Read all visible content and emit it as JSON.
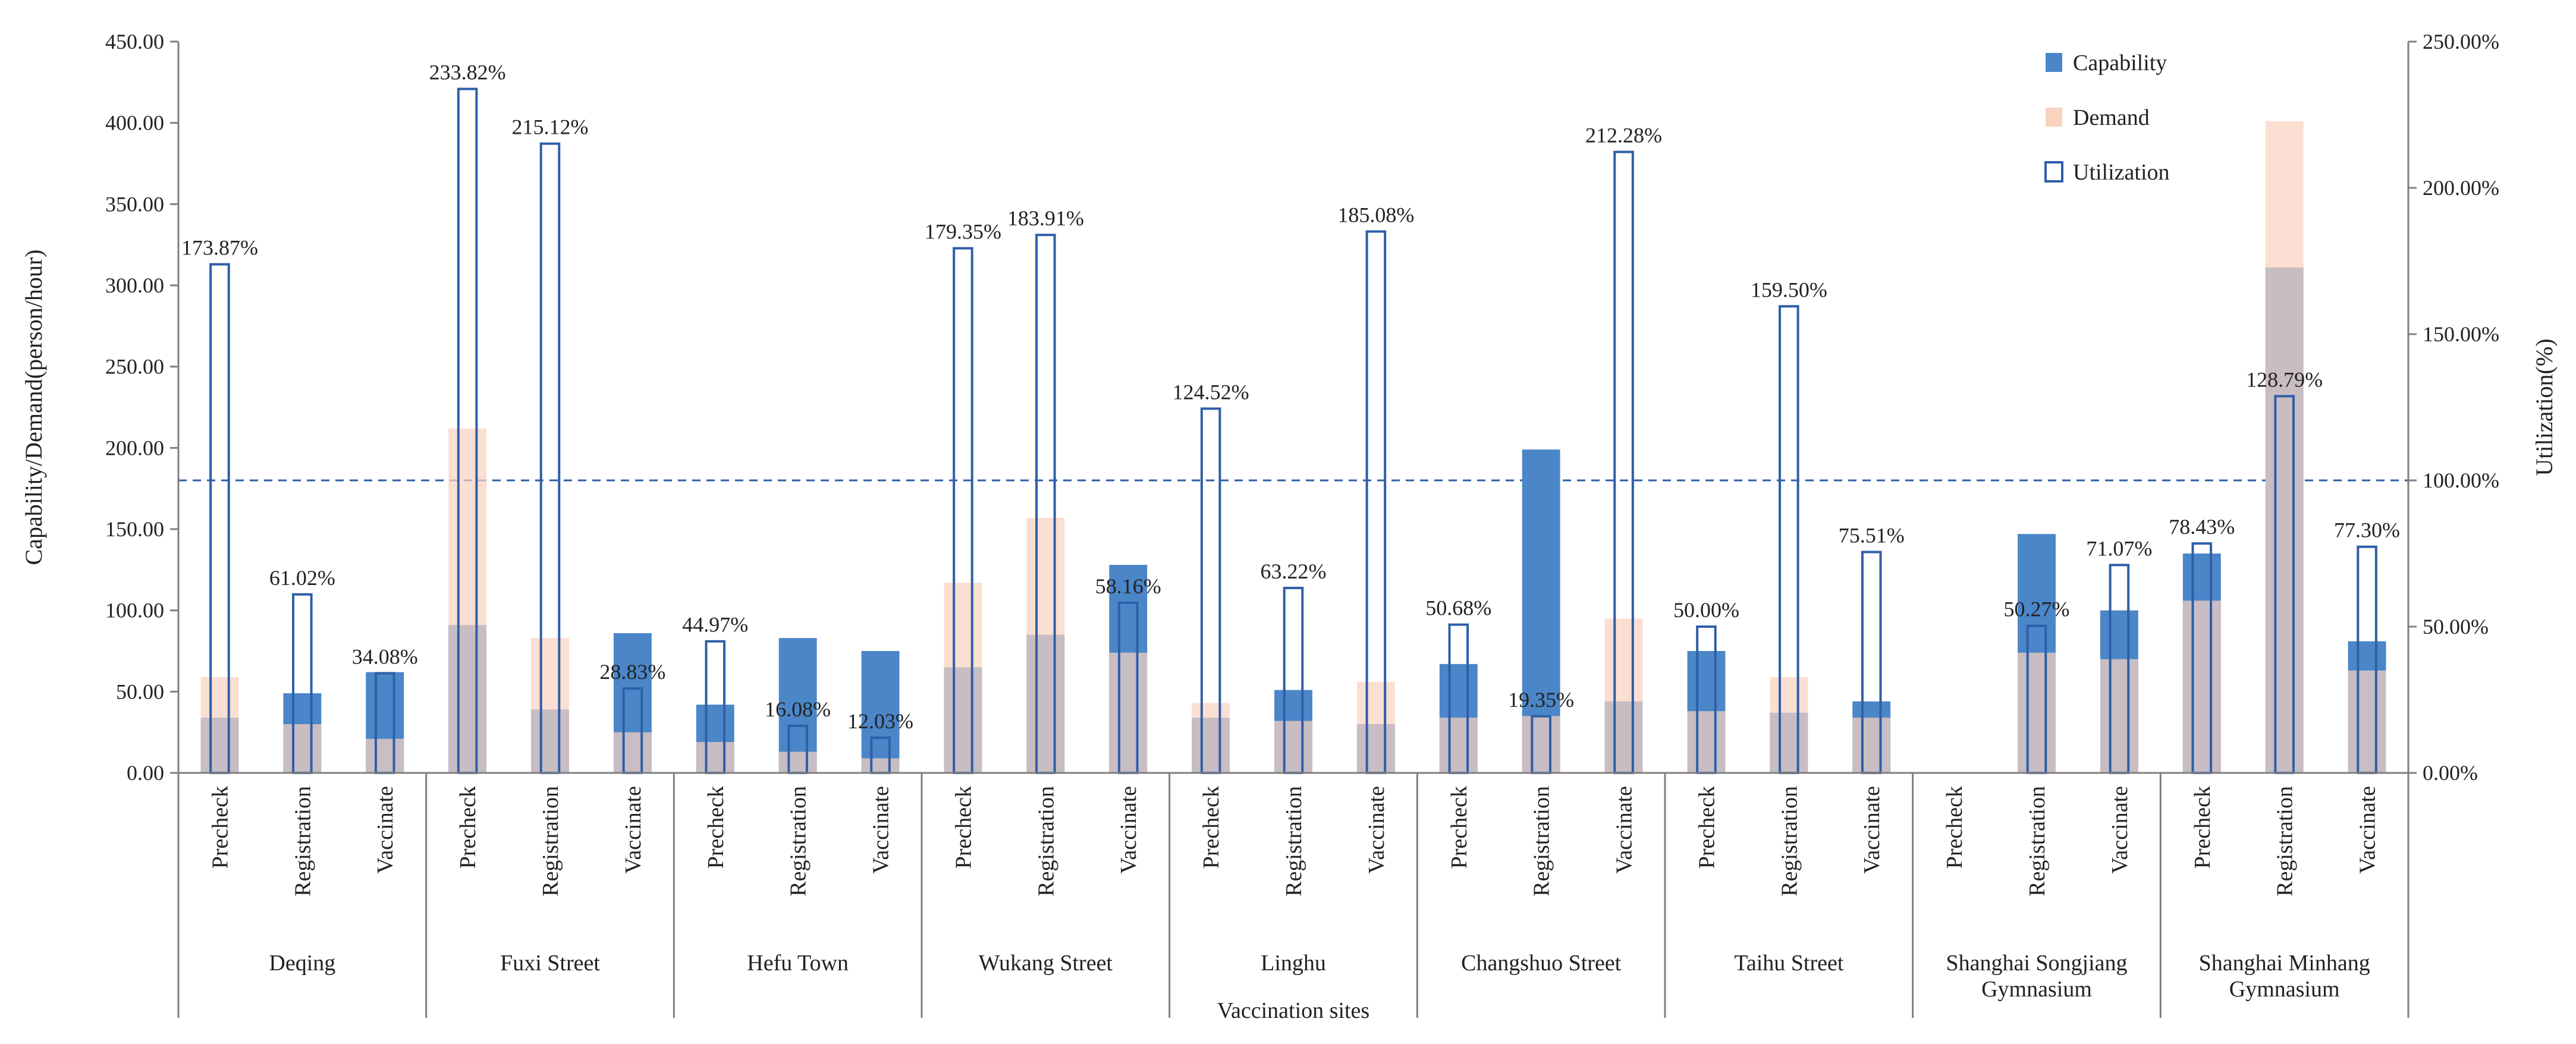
{
  "chart_data": {
    "type": "bar",
    "xlabel": "Vaccination sites",
    "ylabel": "Capability/Demand(person/hour)",
    "y2label": "Utilization(%)",
    "ylim": [
      0,
      450
    ],
    "y2lim": [
      0,
      250
    ],
    "yticks": [
      "0.00",
      "50.00",
      "100.00",
      "150.00",
      "200.00",
      "250.00",
      "300.00",
      "350.00",
      "400.00",
      "450.00"
    ],
    "y2ticks": [
      "0.00%",
      "50.00%",
      "100.00%",
      "150.00%",
      "200.00%",
      "250.00%"
    ],
    "reference_line": {
      "axis": "y2",
      "value": 100
    },
    "legend": {
      "position": "top-right",
      "items": [
        {
          "key": "capability",
          "label": "Capability",
          "color": "#4a86c8"
        },
        {
          "key": "demand",
          "label": "Demand",
          "color": "#fad3c0"
        },
        {
          "key": "utilization",
          "label": "Utilization",
          "color": "#2e5fa8"
        }
      ]
    },
    "stages": [
      "Precheck",
      "Registration",
      "Vaccinate"
    ],
    "sites": [
      {
        "name": "Deqing",
        "bars": [
          {
            "capability": 34,
            "demand": 59,
            "utilization": 173.87,
            "label": "173.87%"
          },
          {
            "capability": 49,
            "demand": 30,
            "utilization": 61.02,
            "label": "61.02%"
          },
          {
            "capability": 62,
            "demand": 21,
            "utilization": 34.08,
            "label": "34.08%"
          }
        ]
      },
      {
        "name": "Fuxi Street",
        "bars": [
          {
            "capability": 91,
            "demand": 212,
            "utilization": 233.82,
            "label": "233.82%"
          },
          {
            "capability": 39,
            "demand": 83,
            "utilization": 215.12,
            "label": "215.12%"
          },
          {
            "capability": 86,
            "demand": 25,
            "utilization": 28.83,
            "label": "28.83%"
          }
        ]
      },
      {
        "name": "Hefu Town",
        "bars": [
          {
            "capability": 42,
            "demand": 19,
            "utilization": 44.97,
            "label": "44.97%"
          },
          {
            "capability": 83,
            "demand": 13,
            "utilization": 16.08,
            "label": "16.08%"
          },
          {
            "capability": 75,
            "demand": 9,
            "utilization": 12.03,
            "label": "12.03%"
          }
        ]
      },
      {
        "name": "Wukang Street",
        "bars": [
          {
            "capability": 65,
            "demand": 117,
            "utilization": 179.35,
            "label": "179.35%"
          },
          {
            "capability": 85,
            "demand": 157,
            "utilization": 183.91,
            "label": "183.91%"
          },
          {
            "capability": 128,
            "demand": 74,
            "utilization": 58.16,
            "label": "58.16%"
          }
        ]
      },
      {
        "name": "Linghu",
        "bars": [
          {
            "capability": 34,
            "demand": 43,
            "utilization": 124.52,
            "label": "124.52%"
          },
          {
            "capability": 51,
            "demand": 32,
            "utilization": 63.22,
            "label": "63.22%"
          },
          {
            "capability": 30,
            "demand": 56,
            "utilization": 185.08,
            "label": "185.08%"
          }
        ]
      },
      {
        "name": "Changshuo Street",
        "bars": [
          {
            "capability": 67,
            "demand": 34,
            "utilization": 50.68,
            "label": "50.68%"
          },
          {
            "capability": 199,
            "demand": 35,
            "utilization": 19.35,
            "label": "19.35%"
          },
          {
            "capability": 44,
            "demand": 95,
            "utilization": 212.28,
            "label": "212.28%"
          }
        ]
      },
      {
        "name": "Taihu Street",
        "bars": [
          {
            "capability": 75,
            "demand": 38,
            "utilization": 50.0,
            "label": "50.00%"
          },
          {
            "capability": 37,
            "demand": 59,
            "utilization": 159.5,
            "label": "159.50%"
          },
          {
            "capability": 44,
            "demand": 34,
            "utilization": 75.51,
            "label": "75.51%"
          }
        ]
      },
      {
        "name": "Shanghai Songjiang\nGymnasium",
        "bars": [
          {
            "capability": 0,
            "demand": 0,
            "utilization": null,
            "label": ""
          },
          {
            "capability": 147,
            "demand": 74,
            "utilization": 50.27,
            "label": "50.27%"
          },
          {
            "capability": 100,
            "demand": 70,
            "utilization": 71.07,
            "label": "71.07%"
          }
        ]
      },
      {
        "name": "Shanghai Minhang\nGymnasium",
        "bars": [
          {
            "capability": 135,
            "demand": 106,
            "utilization": 78.43,
            "label": "78.43%"
          },
          {
            "capability": 311,
            "demand": 401,
            "utilization": 128.79,
            "label": "128.79%"
          },
          {
            "capability": 81,
            "demand": 63,
            "utilization": 77.3,
            "label": "77.30%"
          }
        ]
      }
    ]
  }
}
